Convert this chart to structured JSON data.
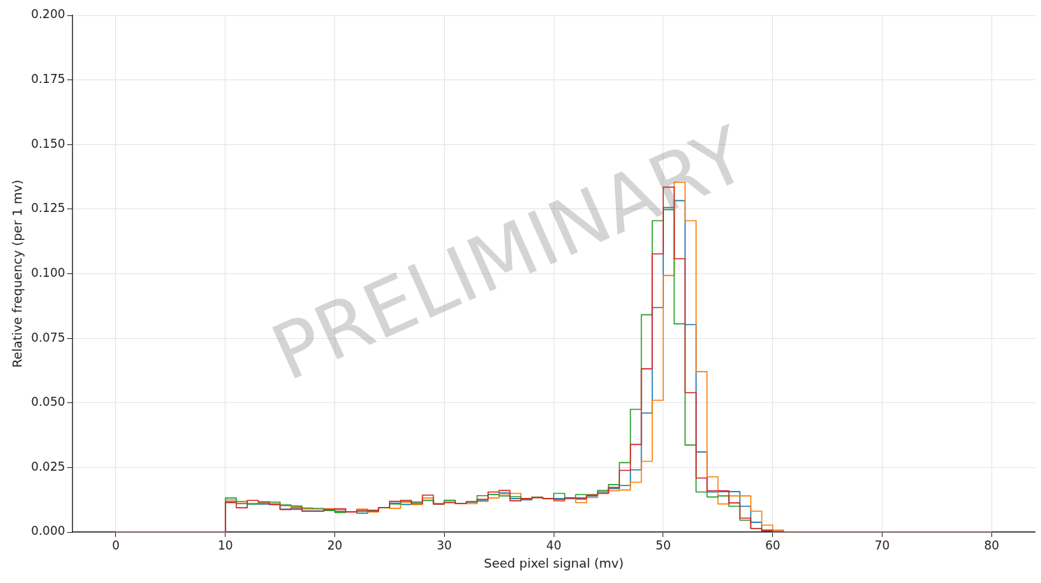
{
  "chart_data": {
    "type": "histogram",
    "xlabel": "Seed pixel signal (mv)",
    "ylabel": "Relative frequency (per 1 mv)",
    "annotations": [
      "PRELIMINARY"
    ],
    "bins": [
      0,
      1,
      2,
      3,
      4,
      5,
      6,
      7,
      8,
      9,
      10,
      11,
      12,
      13,
      14,
      15,
      16,
      17,
      18,
      19,
      20,
      21,
      22,
      23,
      24,
      25,
      26,
      27,
      28,
      29,
      30,
      31,
      32,
      33,
      34,
      35,
      36,
      37,
      38,
      39,
      40,
      41,
      42,
      43,
      44,
      45,
      46,
      47,
      48,
      49,
      50,
      51,
      52,
      53,
      54,
      55,
      56,
      57,
      58,
      59,
      60,
      61,
      62,
      63,
      64,
      65,
      66,
      67,
      68,
      69,
      70,
      71,
      72,
      73,
      74,
      75,
      76,
      77,
      78,
      79,
      80
    ],
    "series": [
      {
        "color": "#1f77b4",
        "values": [
          0,
          0,
          0,
          0,
          0,
          0,
          0,
          0,
          0,
          0,
          0.0118,
          0.011,
          0.0109,
          0.0108,
          0.0107,
          0.0089,
          0.0088,
          0.0082,
          0.0082,
          0.0084,
          0.008,
          0.0078,
          0.0073,
          0.008,
          0.0095,
          0.0112,
          0.0107,
          0.0116,
          0.0123,
          0.0109,
          0.0123,
          0.011,
          0.0116,
          0.0123,
          0.0145,
          0.0152,
          0.013,
          0.0125,
          0.0134,
          0.013,
          0.013,
          0.013,
          0.0128,
          0.014,
          0.0155,
          0.0168,
          0.018,
          0.0241,
          0.0461,
          0.0869,
          0.1256,
          0.1283,
          0.0803,
          0.031,
          0.0155,
          0.0157,
          0.0157,
          0.01,
          0.0038,
          0.0008,
          0.0002,
          0,
          0,
          0,
          0,
          0,
          0,
          0,
          0,
          0,
          0,
          0,
          0,
          0,
          0,
          0,
          0,
          0,
          0,
          0
        ]
      },
      {
        "color": "#ff7f0e",
        "values": [
          0,
          0,
          0,
          0,
          0,
          0,
          0,
          0,
          0,
          0,
          0.0125,
          0.0112,
          0.011,
          0.0112,
          0.011,
          0.0102,
          0.0098,
          0.009,
          0.009,
          0.009,
          0.0087,
          0.0078,
          0.0089,
          0.0078,
          0.0095,
          0.0092,
          0.0116,
          0.0107,
          0.0132,
          0.0109,
          0.0116,
          0.011,
          0.011,
          0.0118,
          0.0132,
          0.0148,
          0.015,
          0.013,
          0.0134,
          0.013,
          0.012,
          0.0132,
          0.0114,
          0.0134,
          0.015,
          0.016,
          0.0163,
          0.0193,
          0.0274,
          0.051,
          0.0993,
          0.1354,
          0.1205,
          0.0621,
          0.0214,
          0.0109,
          0.014,
          0.014,
          0.0081,
          0.0027,
          0.0008,
          0,
          0,
          0,
          0,
          0,
          0,
          0,
          0,
          0,
          0,
          0,
          0,
          0,
          0,
          0,
          0,
          0,
          0,
          0
        ]
      },
      {
        "color": "#2ca02c",
        "values": [
          0,
          0,
          0,
          0,
          0,
          0,
          0,
          0,
          0,
          0,
          0.0132,
          0.0118,
          0.0109,
          0.0112,
          0.0116,
          0.0105,
          0.0101,
          0.0093,
          0.0091,
          0.0084,
          0.0076,
          0.0078,
          0.008,
          0.0085,
          0.0095,
          0.0109,
          0.0118,
          0.0116,
          0.0123,
          0.0109,
          0.0123,
          0.011,
          0.0116,
          0.0141,
          0.0145,
          0.014,
          0.0137,
          0.013,
          0.0134,
          0.013,
          0.015,
          0.0132,
          0.0145,
          0.0145,
          0.0161,
          0.0184,
          0.0269,
          0.0475,
          0.0841,
          0.1205,
          0.1248,
          0.0806,
          0.0337,
          0.0155,
          0.0136,
          0.014,
          0.01,
          0.0046,
          0.0014,
          0.0005,
          0.0002,
          0,
          0,
          0,
          0,
          0,
          0,
          0,
          0,
          0,
          0,
          0,
          0,
          0,
          0,
          0,
          0,
          0,
          0,
          0
        ]
      },
      {
        "color": "#d62728",
        "values": [
          0,
          0,
          0,
          0,
          0,
          0,
          0,
          0,
          0,
          0,
          0.0114,
          0.0094,
          0.0123,
          0.0117,
          0.0107,
          0.0087,
          0.0093,
          0.0081,
          0.0081,
          0.0088,
          0.009,
          0.0078,
          0.0085,
          0.0082,
          0.0095,
          0.0119,
          0.0123,
          0.011,
          0.0143,
          0.0109,
          0.0114,
          0.011,
          0.0118,
          0.0127,
          0.0155,
          0.0161,
          0.0121,
          0.013,
          0.0134,
          0.013,
          0.0125,
          0.0132,
          0.0132,
          0.0143,
          0.015,
          0.0173,
          0.0239,
          0.0339,
          0.0632,
          0.1077,
          0.1335,
          0.1058,
          0.054,
          0.0209,
          0.016,
          0.016,
          0.0113,
          0.0054,
          0.0014,
          0.0005,
          0.0002,
          0,
          0,
          0,
          0,
          0,
          0,
          0,
          0,
          0,
          0,
          0,
          0,
          0,
          0,
          0,
          0,
          0,
          0,
          0
        ]
      }
    ],
    "xlim": [
      -4,
      84
    ],
    "xticks": [
      0,
      10,
      20,
      30,
      40,
      50,
      60,
      70,
      80
    ],
    "ylim": [
      0,
      0.2
    ],
    "yticks": [
      {
        "value": 0,
        "label": "0.000"
      },
      {
        "value": 0.025,
        "label": "0.025"
      },
      {
        "value": 0.05,
        "label": "0.050"
      },
      {
        "value": 0.075,
        "label": "0.075"
      },
      {
        "value": 0.1,
        "label": "0.100"
      },
      {
        "value": 0.125,
        "label": "0.125"
      },
      {
        "value": 0.15,
        "label": "0.150"
      },
      {
        "value": 0.175,
        "label": "0.175"
      },
      {
        "value": 0.2,
        "label": "0.200"
      }
    ],
    "grid": true
  }
}
